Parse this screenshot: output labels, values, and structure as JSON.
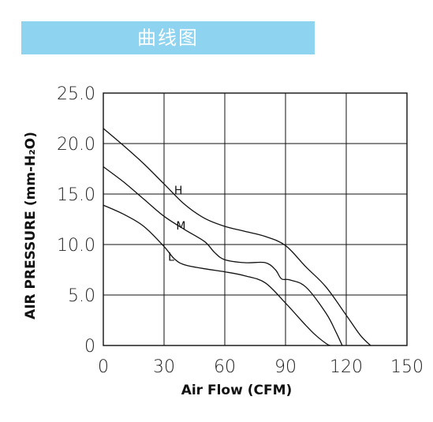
{
  "header": {
    "title": "曲线图"
  },
  "chart_data": {
    "type": "line",
    "title": "",
    "xlabel": "Air Flow (CFM)",
    "ylabel": "AIR PRESSURE (mm-H₂O)",
    "xlim": [
      0,
      150
    ],
    "ylim": [
      0,
      25
    ],
    "xticks": [
      0,
      30,
      60,
      90,
      120,
      150
    ],
    "yticks": [
      0,
      5,
      10,
      15,
      20,
      25
    ],
    "xtick_labels": [
      "0",
      "30",
      "60",
      "90",
      "120",
      "150"
    ],
    "ytick_labels": [
      "0",
      "5.0",
      "10.0",
      "15.0",
      "20.0",
      "25.0"
    ],
    "grid": true,
    "series": [
      {
        "name": "H",
        "x": [
          0,
          10,
          20,
          30,
          40,
          50,
          60,
          70,
          80,
          90,
          100,
          110,
          120,
          127,
          132
        ],
        "y": [
          21.5,
          19.8,
          18.0,
          16.0,
          14.0,
          12.6,
          11.8,
          11.3,
          10.8,
          9.9,
          7.8,
          5.8,
          3.0,
          1.0,
          0
        ]
      },
      {
        "name": "M",
        "x": [
          0,
          10,
          20,
          30,
          40,
          50,
          55,
          60,
          70,
          80,
          85,
          88,
          92,
          100,
          110,
          115,
          118
        ],
        "y": [
          17.7,
          16.2,
          14.5,
          12.8,
          11.5,
          10.3,
          9.2,
          8.5,
          8.2,
          8.2,
          7.5,
          6.6,
          6.5,
          5.8,
          3.2,
          1.3,
          0
        ]
      },
      {
        "name": "L",
        "x": [
          0,
          10,
          20,
          30,
          35,
          40,
          50,
          60,
          70,
          80,
          90,
          100,
          105,
          110,
          112
        ],
        "y": [
          13.9,
          13.0,
          11.8,
          9.8,
          8.6,
          8.0,
          7.6,
          7.3,
          6.9,
          6.2,
          4.2,
          2.0,
          1.0,
          0.2,
          0
        ]
      }
    ],
    "series_label_positions": [
      {
        "name": "H",
        "x": 35,
        "y": 15.0
      },
      {
        "name": "M",
        "x": 36,
        "y": 11.5
      },
      {
        "name": "L",
        "x": 32,
        "y": 8.4
      }
    ]
  }
}
